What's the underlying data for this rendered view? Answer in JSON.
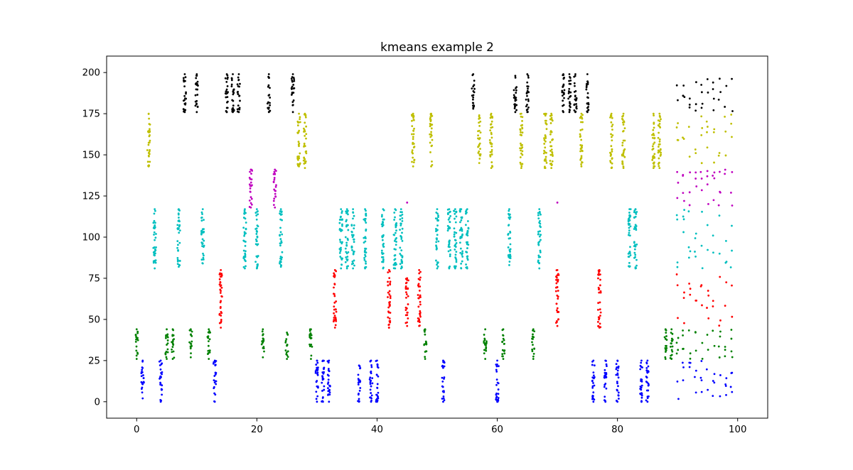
{
  "chart_data": {
    "type": "scatter",
    "title": "kmeans example 2",
    "xlabel": "",
    "ylabel": "",
    "xlim": [
      -5,
      105
    ],
    "ylim": [
      -10,
      210
    ],
    "x_ticks": [
      0,
      20,
      40,
      60,
      80,
      100
    ],
    "y_ticks": [
      0,
      25,
      50,
      75,
      100,
      125,
      150,
      175,
      200
    ],
    "grid": false,
    "legend": "none",
    "marker_size": 1.4,
    "cluster_colors": {
      "blue": "#0000ff",
      "green": "#008000",
      "red": "#ff0000",
      "cyan": "#00bfbf",
      "magenta": "#bf00bf",
      "yellow": "#bfbf00",
      "black": "#000000"
    },
    "strips": [
      {
        "cluster": "green",
        "x": 0,
        "ymin": 26,
        "ymax": 44
      },
      {
        "cluster": "blue",
        "x": 1,
        "ymin": 2,
        "ymax": 25
      },
      {
        "cluster": "yellow",
        "x": 2,
        "ymin": 143,
        "ymax": 175
      },
      {
        "cluster": "cyan",
        "x": 3,
        "ymin": 81,
        "ymax": 117
      },
      {
        "cluster": "blue",
        "x": 4,
        "ymin": 0,
        "ymax": 25
      },
      {
        "cluster": "green",
        "x": 5,
        "ymin": 26,
        "ymax": 44
      },
      {
        "cluster": "green",
        "x": 6,
        "ymin": 26,
        "ymax": 44
      },
      {
        "cluster": "cyan",
        "x": 7,
        "ymin": 82,
        "ymax": 117
      },
      {
        "cluster": "black",
        "x": 8,
        "ymin": 176,
        "ymax": 199
      },
      {
        "cluster": "green",
        "x": 9,
        "ymin": 27,
        "ymax": 44
      },
      {
        "cluster": "black",
        "x": 10,
        "ymin": 176,
        "ymax": 199
      },
      {
        "cluster": "cyan",
        "x": 11,
        "ymin": 84,
        "ymax": 117
      },
      {
        "cluster": "green",
        "x": 12,
        "ymin": 26,
        "ymax": 44
      },
      {
        "cluster": "blue",
        "x": 13,
        "ymin": 0,
        "ymax": 25
      },
      {
        "cluster": "red",
        "x": 14,
        "ymin": 45,
        "ymax": 80
      },
      {
        "cluster": "black",
        "x": 15,
        "ymin": 176,
        "ymax": 199
      },
      {
        "cluster": "black",
        "x": 16,
        "ymin": 176,
        "ymax": 199
      },
      {
        "cluster": "black",
        "x": 17,
        "ymin": 176,
        "ymax": 199
      },
      {
        "cluster": "cyan",
        "x": 18,
        "ymin": 81,
        "ymax": 117
      },
      {
        "cluster": "magenta",
        "x": 19,
        "ymin": 118,
        "ymax": 141
      },
      {
        "cluster": "cyan",
        "x": 20,
        "ymin": 81,
        "ymax": 117
      },
      {
        "cluster": "green",
        "x": 21,
        "ymin": 27,
        "ymax": 44
      },
      {
        "cluster": "black",
        "x": 22,
        "ymin": 176,
        "ymax": 199
      },
      {
        "cluster": "magenta",
        "x": 23,
        "ymin": 118,
        "ymax": 141
      },
      {
        "cluster": "cyan",
        "x": 24,
        "ymin": 82,
        "ymax": 117
      },
      {
        "cluster": "green",
        "x": 25,
        "ymin": 26,
        "ymax": 42
      },
      {
        "cluster": "black",
        "x": 26,
        "ymin": 176,
        "ymax": 199
      },
      {
        "cluster": "yellow",
        "x": 27,
        "ymin": 143,
        "ymax": 175
      },
      {
        "cluster": "yellow",
        "x": 28,
        "ymin": 142,
        "ymax": 175
      },
      {
        "cluster": "green",
        "x": 29,
        "ymin": 26,
        "ymax": 44
      },
      {
        "cluster": "blue",
        "x": 30,
        "ymin": 0,
        "ymax": 25
      },
      {
        "cluster": "blue",
        "x": 31,
        "ymin": 0,
        "ymax": 25
      },
      {
        "cluster": "blue",
        "x": 32,
        "ymin": 0,
        "ymax": 25
      },
      {
        "cluster": "red",
        "x": 33,
        "ymin": 45,
        "ymax": 80
      },
      {
        "cluster": "cyan",
        "x": 34,
        "ymin": 81,
        "ymax": 117
      },
      {
        "cluster": "cyan",
        "x": 35,
        "ymin": 81,
        "ymax": 117
      },
      {
        "cluster": "cyan",
        "x": 36,
        "ymin": 81,
        "ymax": 117
      },
      {
        "cluster": "blue",
        "x": 37,
        "ymin": 0,
        "ymax": 22
      },
      {
        "cluster": "cyan",
        "x": 38,
        "ymin": 81,
        "ymax": 117
      },
      {
        "cluster": "blue",
        "x": 39,
        "ymin": 0,
        "ymax": 25
      },
      {
        "cluster": "blue",
        "x": 40,
        "ymin": 0,
        "ymax": 25
      },
      {
        "cluster": "cyan",
        "x": 41,
        "ymin": 81,
        "ymax": 117
      },
      {
        "cluster": "red",
        "x": 42,
        "ymin": 45,
        "ymax": 80
      },
      {
        "cluster": "cyan",
        "x": 43,
        "ymin": 81,
        "ymax": 117
      },
      {
        "cluster": "cyan",
        "x": 44,
        "ymin": 81,
        "ymax": 117
      },
      {
        "cluster": "red",
        "x": 45,
        "ymin": 46,
        "ymax": 75
      },
      {
        "cluster": "yellow",
        "x": 46,
        "ymin": 143,
        "ymax": 175
      },
      {
        "cluster": "red",
        "x": 47,
        "ymin": 46,
        "ymax": 80
      },
      {
        "cluster": "green",
        "x": 48,
        "ymin": 26,
        "ymax": 44
      },
      {
        "cluster": "yellow",
        "x": 49,
        "ymin": 143,
        "ymax": 175
      },
      {
        "cluster": "cyan",
        "x": 50,
        "ymin": 81,
        "ymax": 117
      },
      {
        "cluster": "blue",
        "x": 51,
        "ymin": 0,
        "ymax": 25
      },
      {
        "cluster": "cyan",
        "x": 52,
        "ymin": 81,
        "ymax": 117
      },
      {
        "cluster": "cyan",
        "x": 53,
        "ymin": 81,
        "ymax": 117
      },
      {
        "cluster": "cyan",
        "x": 54,
        "ymin": 81,
        "ymax": 117
      },
      {
        "cluster": "cyan",
        "x": 55,
        "ymin": 81,
        "ymax": 117
      },
      {
        "cluster": "black",
        "x": 56,
        "ymin": 178,
        "ymax": 199
      },
      {
        "cluster": "yellow",
        "x": 57,
        "ymin": 145,
        "ymax": 174
      },
      {
        "cluster": "green",
        "x": 58,
        "ymin": 26,
        "ymax": 44
      },
      {
        "cluster": "yellow",
        "x": 59,
        "ymin": 142,
        "ymax": 175
      },
      {
        "cluster": "blue",
        "x": 60,
        "ymin": 0,
        "ymax": 25
      },
      {
        "cluster": "green",
        "x": 61,
        "ymin": 26,
        "ymax": 44
      },
      {
        "cluster": "cyan",
        "x": 62,
        "ymin": 83,
        "ymax": 117
      },
      {
        "cluster": "black",
        "x": 63,
        "ymin": 176,
        "ymax": 198
      },
      {
        "cluster": "yellow",
        "x": 64,
        "ymin": 142,
        "ymax": 175
      },
      {
        "cluster": "black",
        "x": 65,
        "ymin": 176,
        "ymax": 199
      },
      {
        "cluster": "green",
        "x": 66,
        "ymin": 26,
        "ymax": 44
      },
      {
        "cluster": "cyan",
        "x": 67,
        "ymin": 81,
        "ymax": 117
      },
      {
        "cluster": "yellow",
        "x": 68,
        "ymin": 142,
        "ymax": 175
      },
      {
        "cluster": "yellow",
        "x": 69,
        "ymin": 142,
        "ymax": 175
      },
      {
        "cluster": "red",
        "x": 70,
        "ymin": 46,
        "ymax": 80
      },
      {
        "cluster": "black",
        "x": 71,
        "ymin": 176,
        "ymax": 199
      },
      {
        "cluster": "black",
        "x": 72,
        "ymin": 176,
        "ymax": 199
      },
      {
        "cluster": "black",
        "x": 73,
        "ymin": 176,
        "ymax": 199
      },
      {
        "cluster": "yellow",
        "x": 74,
        "ymin": 143,
        "ymax": 175
      },
      {
        "cluster": "black",
        "x": 75,
        "ymin": 176,
        "ymax": 199
      },
      {
        "cluster": "blue",
        "x": 76,
        "ymin": 0,
        "ymax": 25
      },
      {
        "cluster": "red",
        "x": 77,
        "ymin": 45,
        "ymax": 80
      },
      {
        "cluster": "blue",
        "x": 78,
        "ymin": 0,
        "ymax": 25
      },
      {
        "cluster": "yellow",
        "x": 79,
        "ymin": 142,
        "ymax": 175
      },
      {
        "cluster": "blue",
        "x": 80,
        "ymin": 0,
        "ymax": 25
      },
      {
        "cluster": "yellow",
        "x": 81,
        "ymin": 142,
        "ymax": 175
      },
      {
        "cluster": "cyan",
        "x": 82,
        "ymin": 82,
        "ymax": 117
      },
      {
        "cluster": "cyan",
        "x": 83,
        "ymin": 81,
        "ymax": 117
      },
      {
        "cluster": "blue",
        "x": 84,
        "ymin": 0,
        "ymax": 25
      },
      {
        "cluster": "blue",
        "x": 85,
        "ymin": 0,
        "ymax": 25
      },
      {
        "cluster": "yellow",
        "x": 86,
        "ymin": 142,
        "ymax": 175
      },
      {
        "cluster": "yellow",
        "x": 87,
        "ymin": 142,
        "ymax": 175
      },
      {
        "cluster": "green",
        "x": 88,
        "ymin": 26,
        "ymax": 44
      },
      {
        "cluster": "green",
        "x": 89,
        "ymin": 26,
        "ymax": 44
      }
    ],
    "scattered_region": {
      "x_range": [
        90,
        99
      ],
      "clusters": [
        {
          "cluster": "blue",
          "ymin": 0,
          "ymax": 25
        },
        {
          "cluster": "green",
          "ymin": 26,
          "ymax": 45
        },
        {
          "cluster": "red",
          "ymin": 46,
          "ymax": 80
        },
        {
          "cluster": "cyan",
          "ymin": 81,
          "ymax": 117
        },
        {
          "cluster": "magenta",
          "ymin": 118,
          "ymax": 141
        },
        {
          "cluster": "yellow",
          "ymin": 142,
          "ymax": 175
        },
        {
          "cluster": "black",
          "ymin": 176,
          "ymax": 199
        }
      ]
    },
    "isolated_points": [
      {
        "cluster": "magenta",
        "x": 45,
        "y": 121
      },
      {
        "cluster": "magenta",
        "x": 70,
        "y": 121
      }
    ]
  }
}
